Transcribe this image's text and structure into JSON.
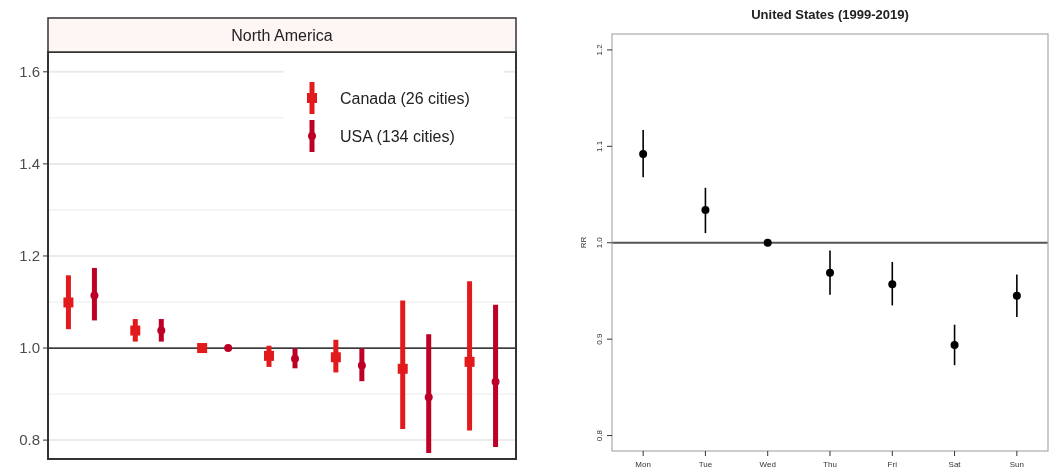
{
  "chart_data": [
    {
      "type": "scatter",
      "title": "North America",
      "categories": [
        null,
        null,
        null,
        null,
        null,
        null,
        null
      ],
      "ylim": [
        0.759,
        1.643
      ],
      "yticks": [
        0.8,
        {
          "value": 0.9,
          "label": null
        },
        {
          "value": 1.0,
          "label": "1.0"
        },
        {
          "value": 1.1,
          "label": null
        },
        1.2,
        {
          "value": 1.3,
          "label": null
        },
        1.4,
        {
          "value": 1.5,
          "label": null
        },
        1.6
      ],
      "grid": "y",
      "legend": "top right",
      "ref_lines": [
        {
          "axis": "y",
          "value": 1.0,
          "color": "#000000"
        }
      ],
      "series": [
        {
          "name": "Canada (26 cities)",
          "color": "#e31a1c",
          "marker": "square",
          "values": [
            1.099,
            1.038,
            1.0,
            0.983,
            0.98,
            0.955,
            0.97
          ],
          "errors": [
            [
              1.041,
              1.158
            ],
            [
              1.014,
              1.063
            ],
            null,
            [
              0.959,
              1.005
            ],
            [
              0.947,
              1.018
            ],
            [
              0.824,
              1.103
            ],
            [
              0.821,
              1.145
            ]
          ]
        },
        {
          "name": "USA (134 cities)",
          "color": "#bd0026",
          "marker": "circle",
          "values": [
            1.114,
            1.038,
            1.0,
            0.977,
            0.962,
            0.893,
            0.927
          ],
          "errors": [
            [
              1.06,
              1.174
            ],
            [
              1.014,
              1.063
            ],
            null,
            [
              0.956,
              0.999
            ],
            [
              0.928,
              0.999
            ],
            [
              0.772,
              1.03
            ],
            [
              0.785,
              1.094
            ]
          ]
        }
      ]
    },
    {
      "type": "scatter",
      "title": "United States (1999-2019)",
      "ylabel": "RR",
      "categories": [
        "Mon",
        "Tue",
        "Wed",
        "Thu",
        "Fri",
        "Sat",
        "Sun"
      ],
      "ylim": [
        0.784,
        1.2165
      ],
      "yticks": [
        0.8,
        0.9,
        {
          "value": 1.0,
          "label": "1.0"
        },
        1.1,
        1.2
      ],
      "marker": "circle",
      "ref_lines": [
        {
          "axis": "y",
          "value": 1.0,
          "color": "#555555"
        }
      ],
      "series": [
        {
          "color": "#000000",
          "values": [
            1.092,
            1.034,
            1.0,
            0.969,
            0.957,
            0.894,
            0.945
          ],
          "errors": [
            [
              1.068,
              1.117
            ],
            [
              1.01,
              1.057
            ],
            null,
            [
              0.946,
              0.992
            ],
            [
              0.935,
              0.98
            ],
            [
              0.873,
              0.915
            ],
            [
              0.923,
              0.967
            ]
          ]
        }
      ]
    }
  ]
}
